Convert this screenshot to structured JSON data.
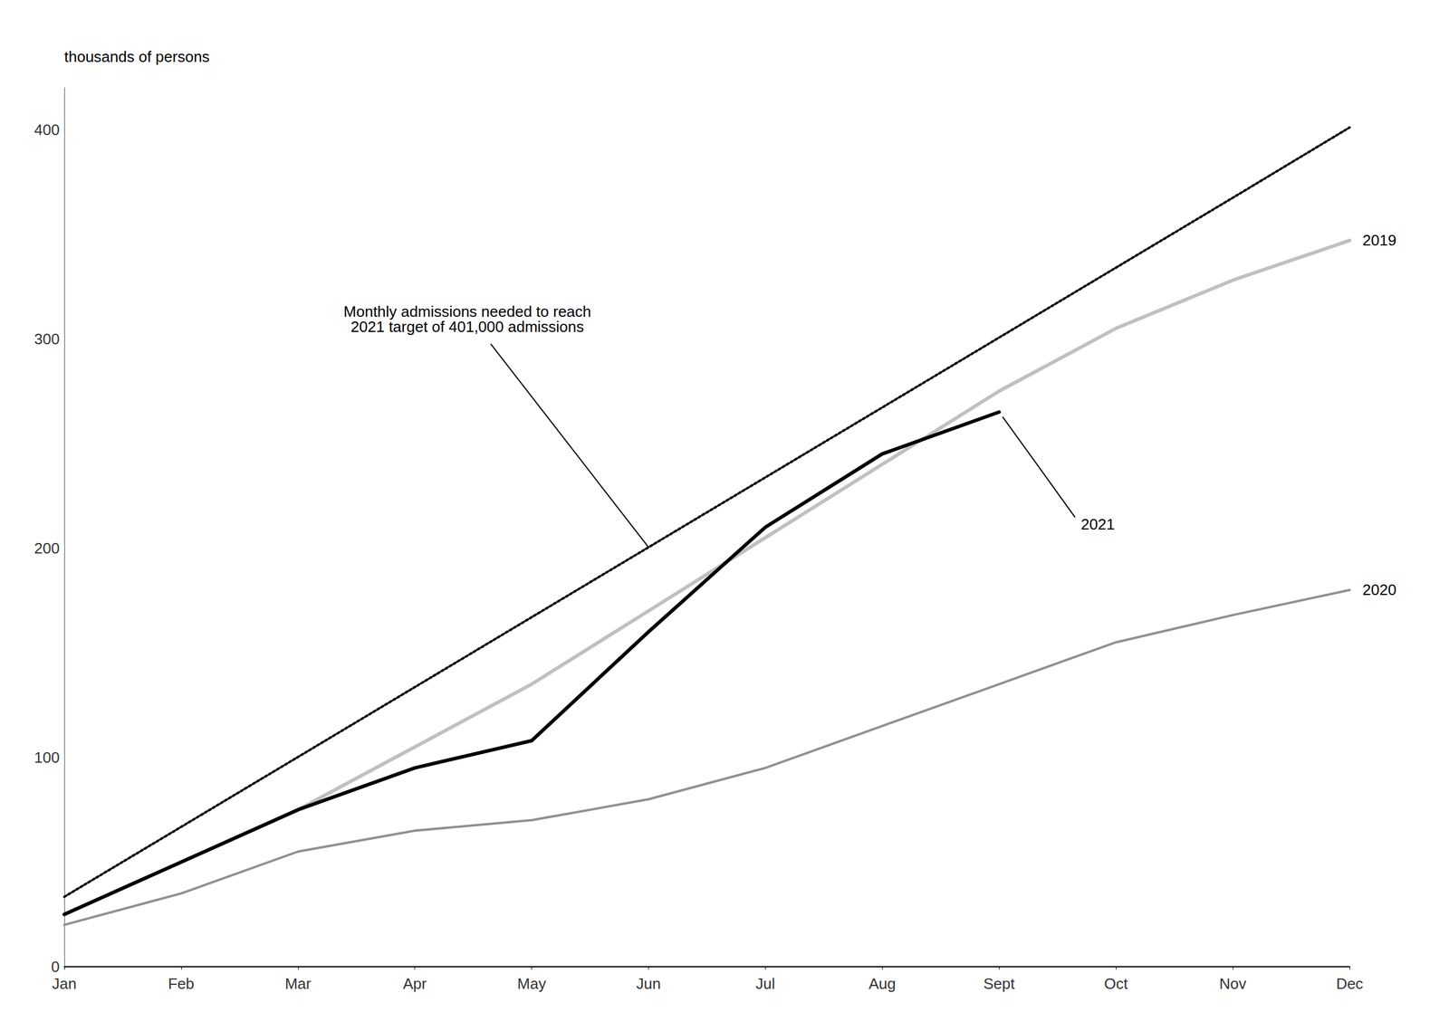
{
  "chart_data": {
    "type": "line",
    "y_label": "thousands of persons",
    "categories": [
      "Jan",
      "Feb",
      "Mar",
      "Apr",
      "May",
      "Jun",
      "Jul",
      "Aug",
      "Sept",
      "Oct",
      "Nov",
      "Dec"
    ],
    "series": [
      {
        "name": "2019",
        "color": "#c0c0c0",
        "line_style": "solid",
        "values": [
          25,
          50,
          75,
          105,
          135,
          170,
          205,
          240,
          275,
          305,
          328,
          347
        ]
      },
      {
        "name": "2020",
        "color": "#909090",
        "line_style": "solid",
        "values": [
          20,
          35,
          55,
          65,
          70,
          80,
          95,
          115,
          135,
          155,
          168,
          180
        ]
      },
      {
        "name": "2021",
        "color": "#000000",
        "line_style": "solid",
        "values": [
          25,
          50,
          75,
          95,
          108,
          160,
          210,
          245,
          265,
          null,
          null,
          null
        ]
      },
      {
        "color": "#000000",
        "line_style": "dotted",
        "values": [
          33.4,
          66.8,
          100.2,
          133.6,
          167.0,
          200.4,
          233.8,
          267.2,
          300.6,
          334.0,
          367.4,
          401.0
        ],
        "annotation": "Monthly admissions needed to reach\n2021 target of 401,000 admissions"
      }
    ],
    "ylim": [
      0,
      420
    ],
    "yticks": [
      0,
      100,
      200,
      300,
      400
    ],
    "grid": false
  }
}
